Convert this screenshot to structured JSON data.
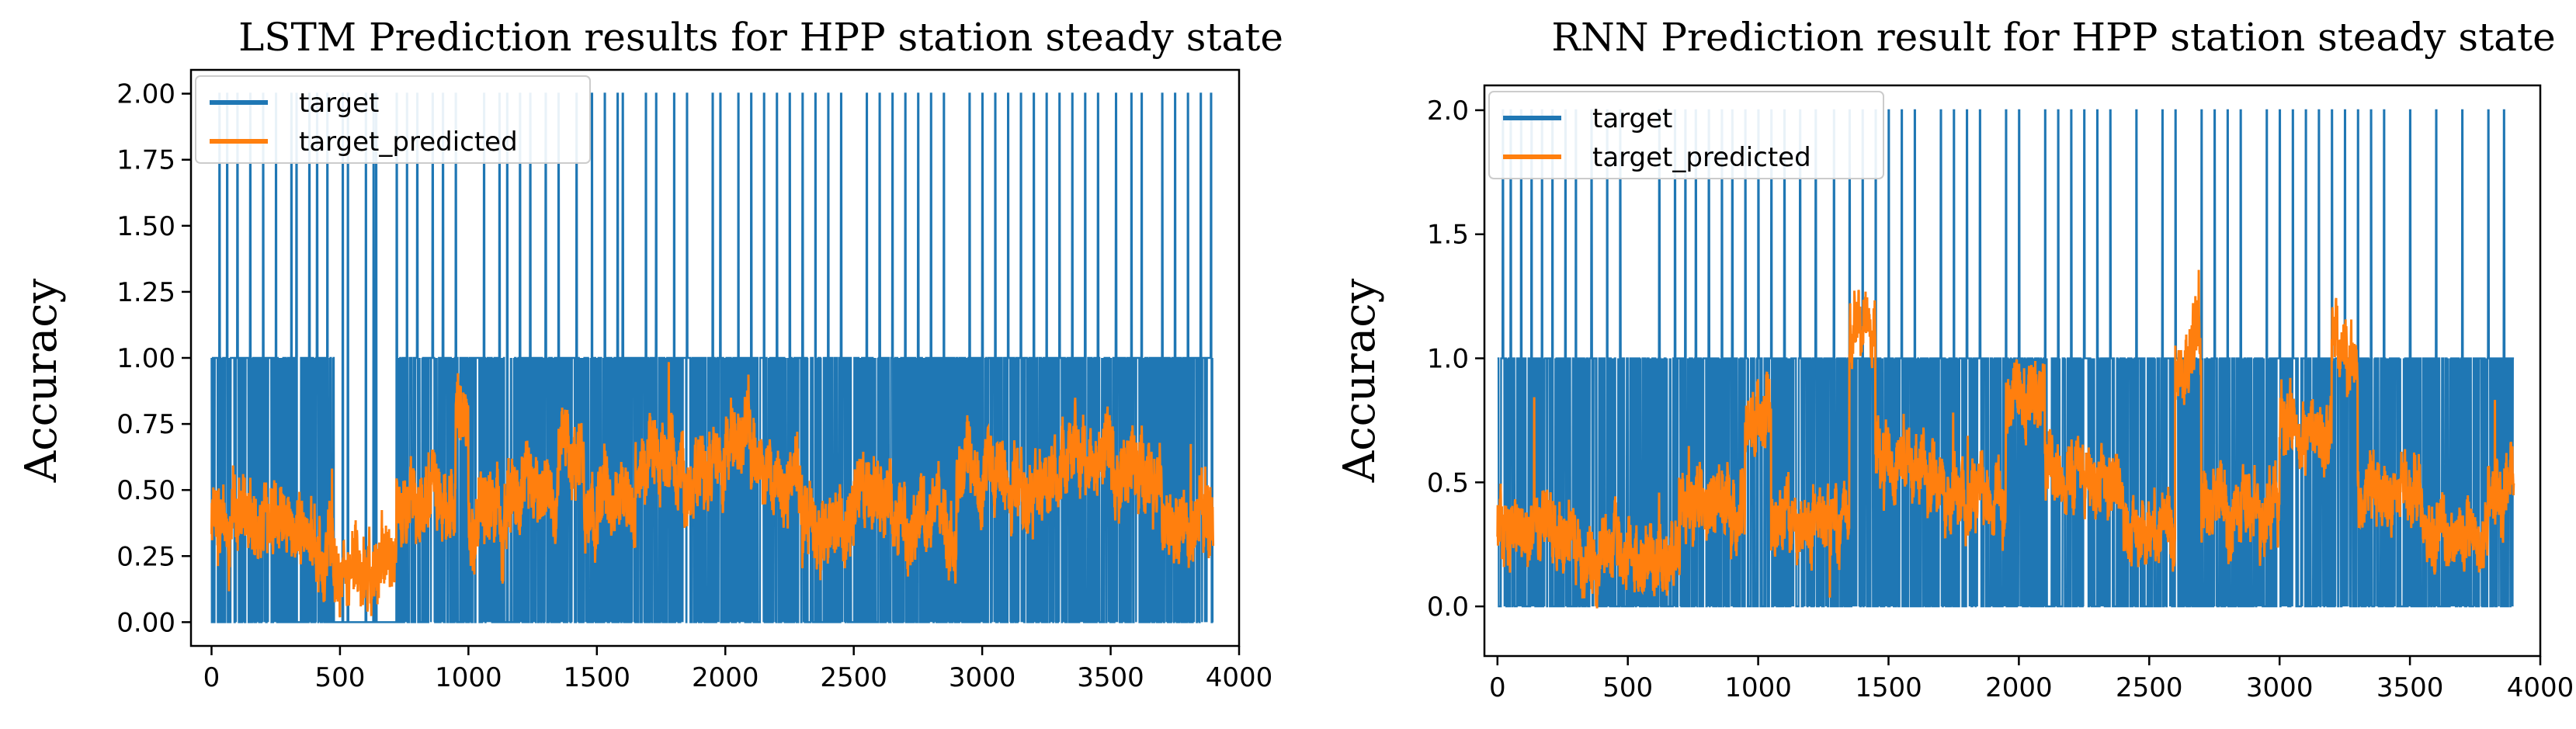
{
  "colors": {
    "target": "#1f77b4",
    "predicted": "#ff7f0e"
  },
  "chart_data": [
    {
      "type": "line",
      "title": "LSTM Prediction results for HPP station steady state",
      "xlabel": "",
      "ylabel": "Accuracy",
      "xlim": [
        -80,
        4000
      ],
      "ylim": [
        -0.09,
        2.09
      ],
      "xticks": [
        "0",
        "500",
        "1000",
        "1500",
        "2000",
        "2500",
        "3000",
        "3500",
        "4000"
      ],
      "yticks": [
        "0.00",
        "0.25",
        "0.50",
        "0.75",
        "1.00",
        "1.25",
        "1.50",
        "1.75",
        "2.00"
      ],
      "grid": false,
      "legend_position": "top-left",
      "n_points": 3900,
      "series": [
        {
          "name": "target",
          "description": "Discrete class sequence taking values 0, 1 and 2",
          "levels": [
            0,
            1,
            2
          ],
          "spike_to_2_x": [
            30,
            60,
            100,
            150,
            200,
            250,
            310,
            330,
            380,
            410,
            450,
            510,
            530,
            600,
            630,
            640,
            720,
            760,
            800,
            860,
            900,
            950,
            1060,
            1120,
            1150,
            1200,
            1240,
            1300,
            1350,
            1420,
            1480,
            1530,
            1580,
            1600,
            1690,
            1730,
            1800,
            1850,
            1950,
            1980,
            2050,
            2100,
            2150,
            2200,
            2250,
            2300,
            2350,
            2400,
            2450,
            2550,
            2600,
            2650,
            2700,
            2750,
            2800,
            2850,
            2950,
            3000,
            3050,
            3100,
            3150,
            3200,
            3250,
            3300,
            3350,
            3400,
            3450,
            3520,
            3580,
            3620,
            3700,
            3750,
            3800,
            3850,
            3890
          ],
          "level_0_gap_x": [
            [
              480,
              720
            ]
          ]
        },
        {
          "name": "target_predicted",
          "description": "Noisy continuous prediction, mostly between 0.1 and 0.9",
          "segments": [
            {
              "x": [
                0,
                300
              ],
              "mean": 0.38
            },
            {
              "x": [
                300,
                480
              ],
              "mean": 0.28
            },
            {
              "x": [
                480,
                720
              ],
              "mean": 0.2
            },
            {
              "x": [
                720,
                950
              ],
              "mean": 0.45
            },
            {
              "x": [
                950,
                1000
              ],
              "mean": 0.8
            },
            {
              "x": [
                1000,
                1150
              ],
              "mean": 0.4
            },
            {
              "x": [
                1150,
                1350
              ],
              "mean": 0.5
            },
            {
              "x": [
                1350,
                1450
              ],
              "mean": 0.65
            },
            {
              "x": [
                1450,
                1650
              ],
              "mean": 0.45
            },
            {
              "x": [
                1650,
                1800
              ],
              "mean": 0.6
            },
            {
              "x": [
                1800,
                2000
              ],
              "mean": 0.55
            },
            {
              "x": [
                2000,
                2100
              ],
              "mean": 0.75
            },
            {
              "x": [
                2100,
                2300
              ],
              "mean": 0.55
            },
            {
              "x": [
                2300,
                2500
              ],
              "mean": 0.35
            },
            {
              "x": [
                2500,
                2700
              ],
              "mean": 0.5
            },
            {
              "x": [
                2700,
                2900
              ],
              "mean": 0.4
            },
            {
              "x": [
                2900,
                3100
              ],
              "mean": 0.6
            },
            {
              "x": [
                3100,
                3300
              ],
              "mean": 0.5
            },
            {
              "x": [
                3300,
                3500
              ],
              "mean": 0.6
            },
            {
              "x": [
                3500,
                3700
              ],
              "mean": 0.55
            },
            {
              "x": [
                3700,
                3900
              ],
              "mean": 0.4
            }
          ]
        }
      ]
    },
    {
      "type": "line",
      "title": "RNN Prediction result for HPP station steady state",
      "xlabel": "",
      "ylabel": "Accuracy",
      "xlim": [
        -50,
        4000
      ],
      "ylim": [
        -0.2,
        2.1
      ],
      "xticks": [
        "0",
        "500",
        "1000",
        "1500",
        "2000",
        "2500",
        "3000",
        "3500",
        "4000"
      ],
      "yticks": [
        "0.0",
        "0.5",
        "1.0",
        "1.5",
        "2.0"
      ],
      "grid": false,
      "legend_position": "top-left",
      "n_points": 3900,
      "series": [
        {
          "name": "target",
          "description": "Discrete class sequence taking values 0, 1 and 2",
          "levels": [
            0,
            1,
            2
          ],
          "spike_to_2_x": [
            20,
            50,
            90,
            130,
            170,
            210,
            260,
            300,
            360,
            420,
            470,
            620,
            680,
            720,
            760,
            810,
            860,
            900,
            950,
            1000,
            1050,
            1100,
            1160,
            1220,
            1290,
            1350,
            1400,
            1450,
            1500,
            1550,
            1600,
            1700,
            1750,
            1800,
            1850,
            1950,
            2000,
            2100,
            2150,
            2200,
            2250,
            2300,
            2350,
            2450,
            2550,
            2600,
            2700,
            2750,
            2800,
            2850,
            2950,
            3000,
            3050,
            3100,
            3150,
            3200,
            3250,
            3300,
            3350,
            3400,
            3500,
            3600,
            3700,
            3800,
            3860
          ],
          "level_0_gap_x": []
        },
        {
          "name": "target_predicted",
          "description": "Noisy continuous prediction, ranging about -0.1 to 1.4",
          "segments": [
            {
              "x": [
                0,
                300
              ],
              "mean": 0.3
            },
            {
              "x": [
                300,
                700
              ],
              "mean": 0.2
            },
            {
              "x": [
                700,
                950
              ],
              "mean": 0.4
            },
            {
              "x": [
                950,
                1050
              ],
              "mean": 0.8
            },
            {
              "x": [
                1050,
                1350
              ],
              "mean": 0.35
            },
            {
              "x": [
                1350,
                1450
              ],
              "mean": 1.1
            },
            {
              "x": [
                1450,
                1650
              ],
              "mean": 0.55
            },
            {
              "x": [
                1650,
                1950
              ],
              "mean": 0.45
            },
            {
              "x": [
                1950,
                2100
              ],
              "mean": 0.85
            },
            {
              "x": [
                2100,
                2400
              ],
              "mean": 0.5
            },
            {
              "x": [
                2400,
                2600
              ],
              "mean": 0.3
            },
            {
              "x": [
                2600,
                2700
              ],
              "mean": 1.05
            },
            {
              "x": [
                2700,
                3000
              ],
              "mean": 0.4
            },
            {
              "x": [
                3000,
                3200
              ],
              "mean": 0.7
            },
            {
              "x": [
                3200,
                3300
              ],
              "mean": 1.05
            },
            {
              "x": [
                3300,
                3550
              ],
              "mean": 0.45
            },
            {
              "x": [
                3550,
                3800
              ],
              "mean": 0.3
            },
            {
              "x": [
                3800,
                3900
              ],
              "mean": 0.45
            }
          ]
        }
      ]
    }
  ]
}
